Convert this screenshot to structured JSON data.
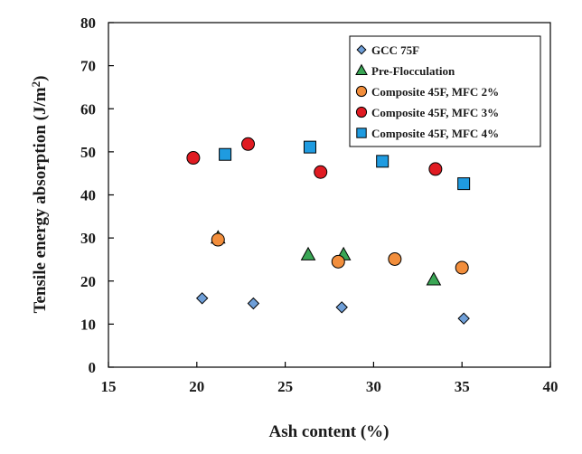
{
  "chart_data": {
    "type": "scatter",
    "title": "",
    "xlabel": "Ash content (%)",
    "ylabel_main": "Tensile energy absorption (J/m",
    "ylabel_sup": "2",
    "ylabel_close": ")",
    "xlim": [
      15,
      40
    ],
    "ylim": [
      0,
      80
    ],
    "xticks": [
      15,
      20,
      25,
      30,
      35,
      40
    ],
    "yticks": [
      0,
      10,
      20,
      30,
      40,
      50,
      60,
      70,
      80
    ],
    "grid": false,
    "legend_position": "top-right",
    "series": [
      {
        "name": "GCC 75F",
        "marker": "diamond",
        "color": "#6f9fd8",
        "points": [
          [
            20.3,
            16.0
          ],
          [
            23.2,
            14.8
          ],
          [
            28.2,
            13.9
          ],
          [
            35.1,
            11.3
          ]
        ]
      },
      {
        "name": "Pre-Flocculation",
        "marker": "triangle",
        "color": "#3aa655",
        "points": [
          [
            21.2,
            30.0
          ],
          [
            26.3,
            26.1
          ],
          [
            28.3,
            26.1
          ],
          [
            33.4,
            20.3
          ]
        ]
      },
      {
        "name": "Composite 45F, MFC 2%",
        "marker": "circle",
        "color": "#f28e3c",
        "points": [
          [
            21.2,
            29.6
          ],
          [
            28.0,
            24.5
          ],
          [
            31.2,
            25.1
          ],
          [
            35.0,
            23.1
          ]
        ]
      },
      {
        "name": "Composite 45F, MFC 3%",
        "marker": "circle",
        "color": "#e01b22",
        "points": [
          [
            19.8,
            48.6
          ],
          [
            22.9,
            51.8
          ],
          [
            27.0,
            45.3
          ],
          [
            33.5,
            46.0
          ]
        ]
      },
      {
        "name": "Composite 45F, MFC 4%",
        "marker": "square",
        "color": "#1f9be0",
        "points": [
          [
            21.6,
            49.4
          ],
          [
            26.4,
            51.1
          ],
          [
            30.5,
            47.8
          ],
          [
            35.1,
            42.6
          ]
        ]
      }
    ]
  }
}
